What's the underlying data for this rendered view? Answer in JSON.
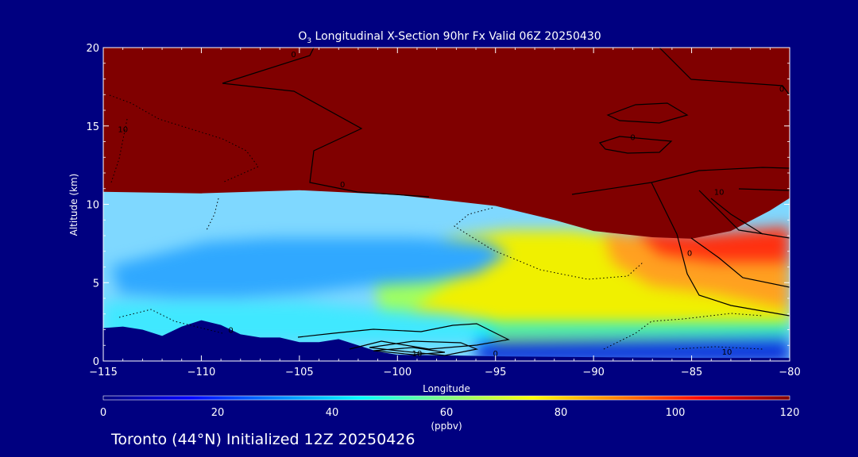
{
  "chart_data": {
    "type": "heatmap",
    "title_prefix": "O",
    "title_sub": "3",
    "title_rest": " Longitudinal X-Section 90hr  Fx Valid 06Z 20250430",
    "xlabel": "Longitude",
    "ylabel": "Altitude (km)",
    "xlim": [
      -115,
      -80
    ],
    "ylim": [
      0,
      20
    ],
    "xticks": [
      -115,
      -110,
      -105,
      -100,
      -95,
      -90,
      -85,
      -80
    ],
    "xtick_labels": [
      "−115",
      "−110",
      "−105",
      "−100",
      "−95",
      "−90",
      "−85",
      "−80"
    ],
    "yticks": [
      0,
      5,
      10,
      15,
      20
    ],
    "colorbar": {
      "min": 0,
      "max": 120,
      "ticks": [
        0,
        20,
        40,
        60,
        80,
        100,
        120
      ],
      "units": "(ppbv)"
    },
    "tropopause_height": [
      [
        -115,
        10.8
      ],
      [
        -110,
        10.7
      ],
      [
        -105,
        10.9
      ],
      [
        -100,
        10.6
      ],
      [
        -95,
        9.9
      ],
      [
        -92,
        9.0
      ],
      [
        -90,
        8.3
      ],
      [
        -87,
        7.9
      ],
      [
        -85,
        7.8
      ],
      [
        -83,
        8.3
      ],
      [
        -81,
        9.6
      ],
      [
        -80,
        10.4
      ]
    ],
    "terrain_height": [
      [
        -115,
        2.1
      ],
      [
        -114,
        2.2
      ],
      [
        -113,
        2.0
      ],
      [
        -112,
        1.6
      ],
      [
        -111,
        2.2
      ],
      [
        -110,
        2.6
      ],
      [
        -109,
        2.3
      ],
      [
        -108,
        1.7
      ],
      [
        -107,
        1.5
      ],
      [
        -106,
        1.5
      ],
      [
        -105,
        1.2
      ],
      [
        -104,
        1.2
      ],
      [
        -103,
        1.4
      ],
      [
        -102,
        1.0
      ],
      [
        -101,
        0.6
      ],
      [
        -100,
        0.4
      ],
      [
        -97,
        0.35
      ],
      [
        -95,
        0.3
      ],
      [
        -90,
        0.25
      ],
      [
        -85,
        0.2
      ],
      [
        -80,
        0.2
      ]
    ],
    "contour_labels": [
      {
        "lon": -105.3,
        "alt": 19.6,
        "text": "0"
      },
      {
        "lon": -114.0,
        "alt": 14.8,
        "text": "10"
      },
      {
        "lon": -102.8,
        "alt": 11.3,
        "text": "0"
      },
      {
        "lon": -88.0,
        "alt": 14.3,
        "text": "0"
      },
      {
        "lon": -80.4,
        "alt": 17.4,
        "text": "0"
      },
      {
        "lon": -83.6,
        "alt": 10.8,
        "text": "10"
      },
      {
        "lon": -85.1,
        "alt": 6.9,
        "text": "0"
      },
      {
        "lon": -108.5,
        "alt": 2.0,
        "text": "0"
      },
      {
        "lon": -99.0,
        "alt": 0.5,
        "text": "10"
      },
      {
        "lon": -95.0,
        "alt": 0.5,
        "text": "0"
      },
      {
        "lon": -83.2,
        "alt": 0.6,
        "text": "10"
      }
    ]
  },
  "footer_text": "Toronto (44°N) Initialized 12Z 20250426"
}
